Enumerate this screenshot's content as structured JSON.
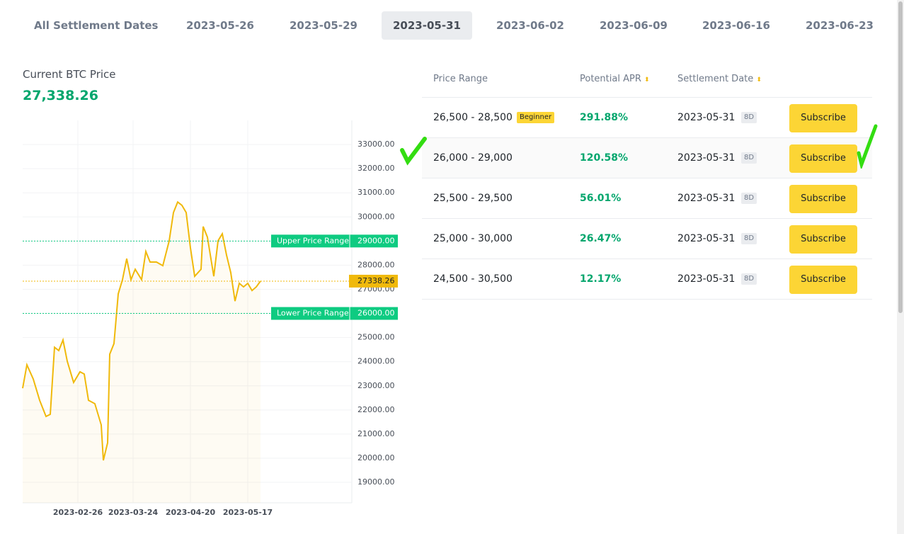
{
  "tabs": [
    "All Settlement Dates",
    "2023-05-26",
    "2023-05-29",
    "2023-05-31",
    "2023-06-02",
    "2023-06-09",
    "2023-06-16",
    "2023-06-23"
  ],
  "price": {
    "label": "Current BTC Price",
    "value": "27,338.26"
  },
  "chart_data": {
    "type": "line",
    "x": [
      "2023-01-31",
      "2023-02-02",
      "2023-02-05",
      "2023-02-08",
      "2023-02-11",
      "2023-02-13",
      "2023-02-15",
      "2023-02-17",
      "2023-02-19",
      "2023-02-21",
      "2023-02-24",
      "2023-02-27",
      "2023-03-01",
      "2023-03-03",
      "2023-03-06",
      "2023-03-09",
      "2023-03-10",
      "2023-03-12",
      "2023-03-13",
      "2023-03-15",
      "2023-03-17",
      "2023-03-19",
      "2023-03-21",
      "2023-03-23",
      "2023-03-25",
      "2023-03-28",
      "2023-03-30",
      "2023-04-01",
      "2023-04-04",
      "2023-04-07",
      "2023-04-10",
      "2023-04-12",
      "2023-04-14",
      "2023-04-16",
      "2023-04-18",
      "2023-04-20",
      "2023-04-22",
      "2023-04-25",
      "2023-04-26",
      "2023-04-28",
      "2023-05-01",
      "2023-05-03",
      "2023-05-05",
      "2023-05-07",
      "2023-05-09",
      "2023-05-11",
      "2023-05-13",
      "2023-05-15",
      "2023-05-17",
      "2023-05-19",
      "2023-05-21",
      "2023-05-23"
    ],
    "series": [
      {
        "color": "#f0b90b",
        "values": [
          22900,
          23870,
          23280,
          22400,
          21730,
          21820,
          24600,
          24460,
          24900,
          24020,
          23140,
          23580,
          23490,
          22400,
          22260,
          21380,
          19910,
          20640,
          24310,
          24750,
          26810,
          27400,
          28270,
          27400,
          27830,
          27400,
          28570,
          28130,
          28130,
          27980,
          29010,
          30180,
          30620,
          30480,
          30180,
          28720,
          27540,
          27830,
          29600,
          29160,
          27540,
          29010,
          29300,
          28420,
          27690,
          26510,
          27250,
          27100,
          27250,
          26950,
          27100,
          27340
        ]
      }
    ],
    "xlim": [
      "2023-01-31",
      "2023-07-05"
    ],
    "xticks": [
      "2023-02-26",
      "2023-03-24",
      "2023-04-20",
      "2023-05-17"
    ],
    "ylim": [
      18150,
      34000
    ],
    "yticks": [
      {
        "value": 19000,
        "label": "19000.00"
      },
      {
        "value": 20000,
        "label": "20000.00"
      },
      {
        "value": 21000,
        "label": "21000.00"
      },
      {
        "value": 22000,
        "label": "22000.00"
      },
      {
        "value": 23000,
        "label": "23000.00"
      },
      {
        "value": 24000,
        "label": "24000.00"
      },
      {
        "value": 25000,
        "label": "25000.00"
      },
      {
        "value": 26000,
        "label": "26000.00"
      },
      {
        "value": 27000,
        "label": "27000.00"
      },
      {
        "value": 28000,
        "label": "28000.00"
      },
      {
        "value": 29000,
        "label": "29000.00"
      },
      {
        "value": 30000,
        "label": "30000.00"
      },
      {
        "value": 31000,
        "label": "31000.00"
      },
      {
        "value": 32000,
        "label": "32000.00"
      },
      {
        "value": 33000,
        "label": "33000.00"
      }
    ],
    "grid": true,
    "ranges": [
      {
        "name": "Upper Price Range",
        "value": 29000,
        "value_label": "29000.00",
        "color": "#0ecb81"
      },
      {
        "name": "Lower Price Range",
        "value": 26000,
        "value_label": "26000.00",
        "color": "#0ecb81"
      }
    ],
    "current": {
      "value": 27338.26,
      "color": "#f0b90b"
    }
  },
  "table": {
    "headers": [
      "Price Range",
      "Potential APR",
      "Settlement Date"
    ],
    "rows": [
      [
        "26,500 - 28,500",
        "291.88%",
        "2023-05-31",
        "8D",
        "Subscribe"
      ],
      [
        "26,000 - 29,000",
        "120.58%",
        "2023-05-31",
        "8D",
        "Subscribe"
      ],
      [
        "25,500 - 29,500",
        "56.01%",
        "2023-05-31",
        "8D",
        "Subscribe"
      ],
      [
        "25,000 - 30,000",
        "26.47%",
        "2023-05-31",
        "8D",
        "Subscribe"
      ],
      [
        "24,500 - 30,500",
        "12.17%",
        "2023-05-31",
        "8D",
        "Subscribe"
      ]
    ],
    "badge": "Beginner"
  }
}
